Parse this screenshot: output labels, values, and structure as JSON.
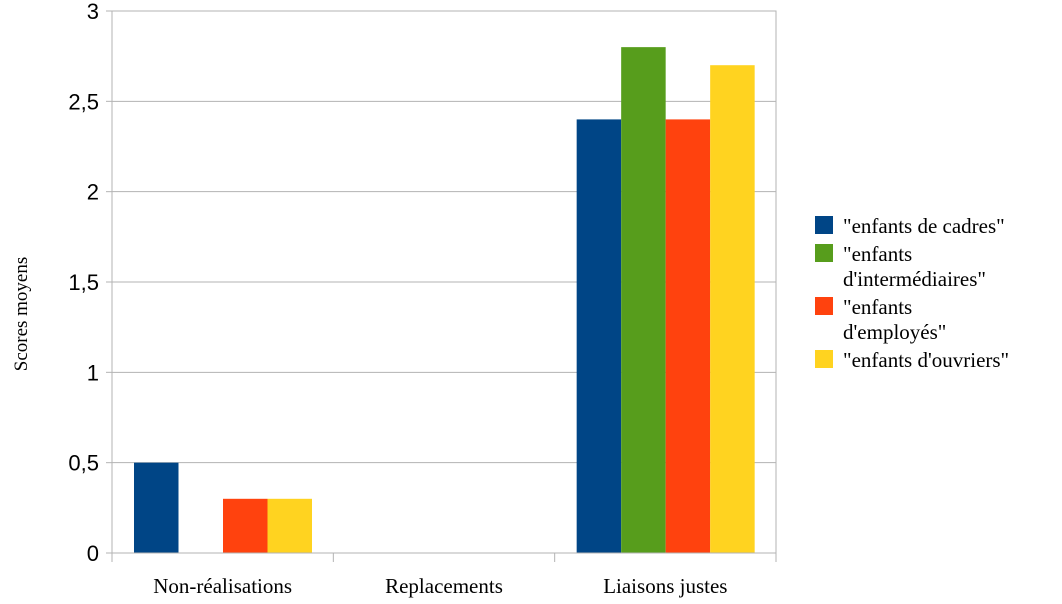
{
  "chart_data": {
    "type": "bar",
    "title": "",
    "xlabel": "",
    "ylabel": "Scores moyens",
    "categories": [
      "Non-réalisations",
      "Replacements",
      "Liaisons justes"
    ],
    "ylim": [
      0,
      3
    ],
    "yticks": [
      0,
      0.5,
      1,
      1.5,
      2,
      2.5,
      3
    ],
    "ytick_labels": [
      "0",
      "0,5",
      "1",
      "1,5",
      "2",
      "2,5",
      "3"
    ],
    "grid": true,
    "legend_position": "right",
    "series": [
      {
        "name": "\"enfants de cadres\"",
        "legend_lines": [
          "\"enfants de cadres\""
        ],
        "color": "#004586",
        "values": [
          0.5,
          0,
          2.4
        ]
      },
      {
        "name": "\"enfants d'intermédiaires\"",
        "legend_lines": [
          "\"enfants",
          "d'intermédiaires\""
        ],
        "color": "#579d1c",
        "values": [
          0,
          0,
          2.8
        ]
      },
      {
        "name": "\"enfants d'employés\"",
        "legend_lines": [
          "\"enfants",
          "d'employés\""
        ],
        "color": "#ff420e",
        "values": [
          0.3,
          0,
          2.4
        ]
      },
      {
        "name": "\"enfants d'ouvriers\"",
        "legend_lines": [
          "\"enfants d'ouvriers\""
        ],
        "color": "#ffd320",
        "values": [
          0.3,
          0,
          2.7
        ]
      }
    ]
  }
}
